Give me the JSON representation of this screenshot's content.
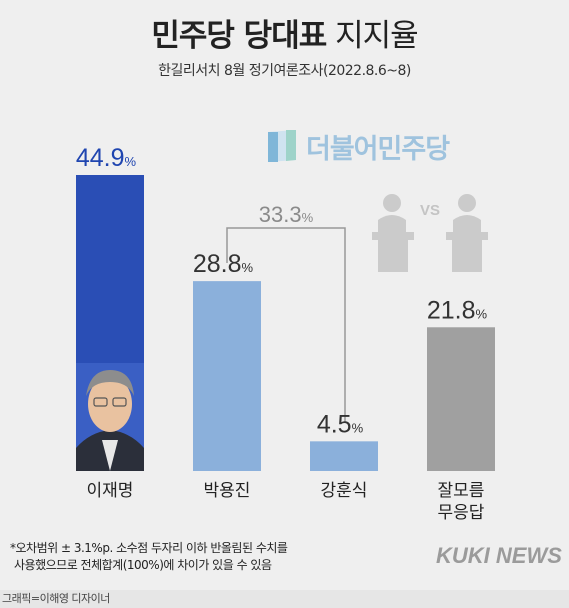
{
  "header": {
    "title_bold": "민주당 당대표",
    "title_light": "지지율",
    "subtitle": "한길리서치 8월 정기여론조사(2022.8.6~8)"
  },
  "party_logo_text": "더불어민주당",
  "colors": {
    "lee": "#2a4eb5",
    "park": "#8bb0db",
    "kang": "#8bb0db",
    "dunno": "#a0a0a0",
    "value_blue": "#1f45b0",
    "value_dark": "#333333"
  },
  "chart_data": {
    "type": "bar",
    "title": "민주당 당대표 지지율",
    "categories": [
      "이재명",
      "박용진",
      "강훈식",
      "잘모름\n무응답"
    ],
    "values": [
      44.9,
      28.8,
      4.5,
      21.8
    ],
    "value_labels": [
      "44.9",
      "28.8",
      "4.5",
      "21.8"
    ],
    "unit": "%",
    "combined_label": "33.3",
    "combined_of": [
      "박용진",
      "강훈식"
    ],
    "ylim": [
      0,
      44.9
    ]
  },
  "footnote": {
    "line1": "*오차범위 ± 3.1%p. 소수점 두자리 이하 반올림된 수치를",
    "line2": "사용했으므로 전체합계(100%)에 차이가 있을 수 있음"
  },
  "brand": "KUKI NEWS",
  "credit": "그래픽=이해영 디자이너"
}
